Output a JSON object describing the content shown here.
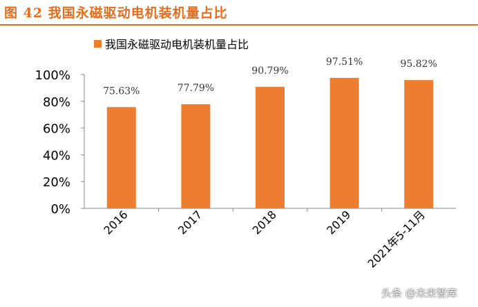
{
  "figure_title": "图 42 我国永磁驱动电机装机量占比",
  "watermark": "头条 @未来智库",
  "colors": {
    "accent": "#e46c1c",
    "bar": "#ed7d31"
  },
  "chart_data": {
    "type": "bar",
    "categories": [
      "2016",
      "2017",
      "2018",
      "2019",
      "2021年5-11月"
    ],
    "series": [
      {
        "name": "我国永磁驱动电机装机量占比",
        "values": [
          75.63,
          77.79,
          90.79,
          97.51,
          95.82
        ]
      }
    ],
    "data_labels": [
      "75.63%",
      "77.79%",
      "90.79%",
      "97.51%",
      "95.82%"
    ],
    "y_ticks": [
      "0%",
      "20%",
      "40%",
      "60%",
      "80%",
      "100%"
    ],
    "ylim": [
      0,
      100
    ],
    "grid": false,
    "legend": "top-left"
  }
}
